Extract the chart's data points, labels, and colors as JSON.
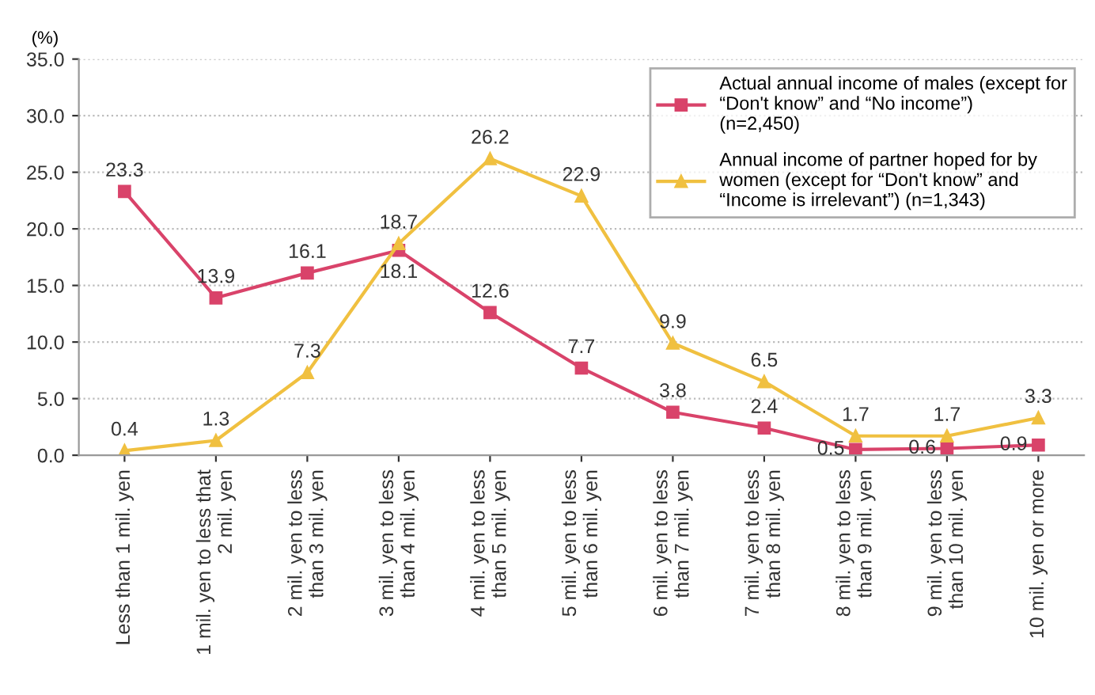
{
  "chart_data": {
    "type": "line",
    "ylabel": "(%)",
    "categories": [
      "Less than 1 mil. yen",
      "1 mil. yen to less that\n2 mil. yen",
      "2 mil. yen to less\nthan 3 mil. yen",
      "3 mil. yen to less\nthan 4 mil. yen",
      "4 mil. yen to less\nthan 5 mil. yen",
      "5 mil. yen to less\nthan 6 mil. yen",
      "6 mil. yen to less\nthan 7 mil. yen",
      "7 mil. yen to less\nthan 8 mil. yen",
      "8 mil. yen to less\nthan 9 mil. yen",
      "9 mil. yen to less\nthan 10 mil. yen",
      "10 mil. yen or more"
    ],
    "series": [
      {
        "name": "Actual annual income of males (except for\n“Don't know” and “No income”)\n(n=2,450)",
        "color": "#d9436a",
        "marker": "square",
        "values": [
          23.3,
          13.9,
          16.1,
          18.1,
          12.6,
          7.7,
          3.8,
          2.4,
          0.5,
          0.6,
          0.9
        ]
      },
      {
        "name": "Annual income of partner hoped for by\nwomen (except for “Don't know” and\n“Income is irrelevant”) (n=1,343)",
        "color": "#f0c040",
        "marker": "triangle",
        "values": [
          0.4,
          1.3,
          7.3,
          18.7,
          26.2,
          22.9,
          9.9,
          6.5,
          1.7,
          1.7,
          3.3
        ]
      }
    ],
    "ylim": [
      0,
      35
    ],
    "yticks": [
      {
        "value": 0,
        "label": "0.0"
      },
      {
        "value": 5,
        "label": "5.0"
      },
      {
        "value": 10,
        "label": "10.0"
      },
      {
        "value": 15,
        "label": "15.0"
      },
      {
        "value": 20,
        "label": "20.0"
      },
      {
        "value": 25,
        "label": "25.0"
      },
      {
        "value": 30,
        "label": "30.0"
      },
      {
        "value": 35,
        "label": "35.0"
      }
    ],
    "grid": "y",
    "legend": "top right",
    "data_labels": true,
    "line_style": "solid"
  }
}
